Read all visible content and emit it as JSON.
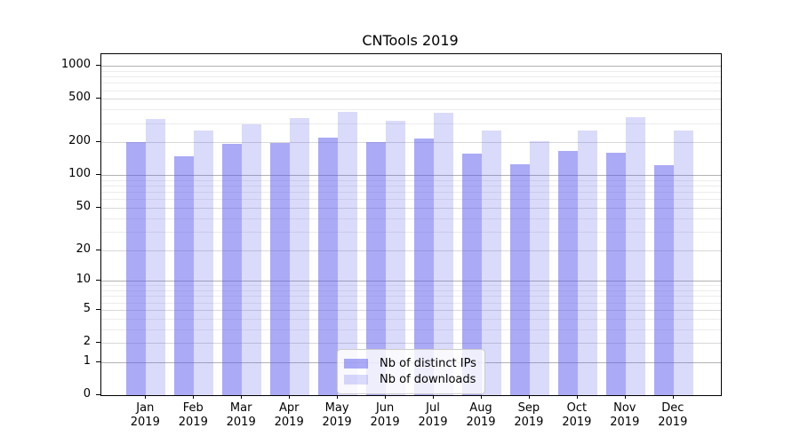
{
  "chart_data": {
    "type": "bar",
    "title": "CNTools 2019",
    "categories": [
      "Jan 2019",
      "Feb 2019",
      "Mar 2019",
      "Apr 2019",
      "May 2019",
      "Jun 2019",
      "Jul 2019",
      "Aug 2019",
      "Sep 2019",
      "Oct 2019",
      "Nov 2019",
      "Dec 2019"
    ],
    "series": [
      {
        "name": "Nb of distinct IPs",
        "color": "rgba(85,85,238,0.5)",
        "values": [
          200,
          148,
          195,
          199,
          222,
          200,
          218,
          158,
          127,
          167,
          160,
          124
        ]
      },
      {
        "name": "Nb of downloads",
        "color": "rgba(85,85,238,0.22)",
        "values": [
          330,
          257,
          293,
          332,
          379,
          315,
          375,
          257,
          206,
          259,
          341,
          258
        ]
      }
    ],
    "yscale": "log1p (symlog-like, linear at 0)",
    "yticks": [
      0,
      1,
      2,
      5,
      10,
      20,
      50,
      100,
      200,
      500,
      1000
    ],
    "ylim": [
      0,
      1280
    ],
    "xlabel": "",
    "ylabel": "",
    "grid": "horizontal major+minor",
    "legend_position": "lower center inside plot"
  },
  "colors": {
    "bar_distinct_ips": "rgba(85,85,238,0.5)",
    "bar_downloads": "rgba(85,85,238,0.22)",
    "grid_major": "#b2b2b2",
    "grid_mid": "#d8d8d8",
    "grid_minor": "#ececec",
    "axis": "#000000",
    "legend_border": "#cccccc",
    "legend_bg": "rgba(255,255,255,0.8)",
    "text": "#000000",
    "background": "#ffffff"
  }
}
